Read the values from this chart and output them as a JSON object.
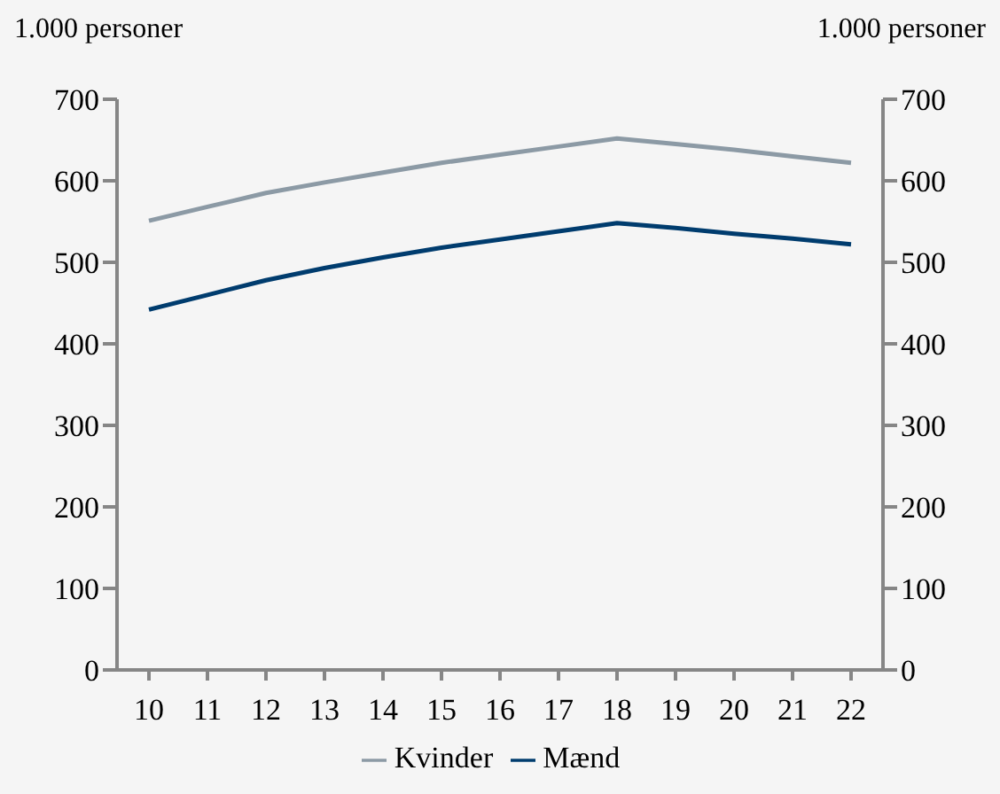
{
  "chart_data": {
    "type": "line",
    "ylabel": "1.000 personer",
    "y2label": "1.000 personer",
    "categories": [
      "10",
      "11",
      "12",
      "13",
      "14",
      "15",
      "16",
      "17",
      "18",
      "19",
      "20",
      "21",
      "22"
    ],
    "series": [
      {
        "name": "Mænd",
        "color": "#003c6e",
        "values": [
          442,
          460,
          478,
          493,
          506,
          518,
          528,
          538,
          548,
          542,
          535,
          529,
          522
        ]
      },
      {
        "name": "Kvinder",
        "color": "#8c9aa5",
        "values": [
          551,
          568,
          585,
          598,
          610,
          622,
          632,
          642,
          652,
          645,
          638,
          630,
          622
        ]
      }
    ],
    "ylim": [
      0,
      700
    ],
    "yticks": [
      0,
      100,
      200,
      300,
      400,
      500,
      600,
      700
    ],
    "y2lim": [
      0,
      700
    ],
    "y2ticks": [
      0,
      100,
      200,
      300,
      400,
      500,
      600,
      700
    ],
    "grid": false,
    "legend": "bottom",
    "marker": "none",
    "line_style": "solid"
  }
}
